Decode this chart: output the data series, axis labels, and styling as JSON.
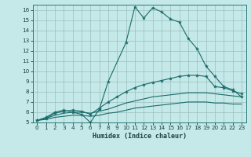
{
  "title": "",
  "xlabel": "Humidex (Indice chaleur)",
  "xlim": [
    -0.5,
    23.5
  ],
  "ylim": [
    5,
    16.5
  ],
  "yticks": [
    5,
    6,
    7,
    8,
    9,
    10,
    11,
    12,
    13,
    14,
    15,
    16
  ],
  "xticks": [
    0,
    1,
    2,
    3,
    4,
    5,
    6,
    7,
    8,
    9,
    10,
    11,
    12,
    13,
    14,
    15,
    16,
    17,
    18,
    19,
    20,
    21,
    22,
    23
  ],
  "bg_color": "#c5e8e8",
  "line_color": "#1a6b6b",
  "grid_color": "#9bbfbf",
  "lines": [
    {
      "x": [
        0,
        1,
        2,
        3,
        4,
        5,
        6,
        7,
        8,
        10,
        11,
        12,
        13,
        14,
        15,
        16,
        17,
        18,
        19,
        20,
        21,
        22,
        23
      ],
      "y": [
        5.2,
        5.5,
        6.0,
        6.2,
        6.0,
        5.8,
        5.0,
        6.3,
        9.0,
        12.8,
        16.3,
        15.2,
        16.2,
        15.8,
        15.1,
        14.8,
        13.2,
        12.2,
        10.5,
        9.5,
        8.5,
        8.2,
        7.5
      ],
      "marker": true
    },
    {
      "x": [
        0,
        1,
        2,
        3,
        4,
        5,
        6,
        7,
        8,
        9,
        10,
        11,
        12,
        13,
        14,
        15,
        16,
        17,
        18,
        19,
        20,
        21,
        22,
        23
      ],
      "y": [
        5.2,
        5.4,
        5.9,
        6.1,
        6.2,
        6.1,
        5.8,
        6.4,
        7.0,
        7.5,
        8.0,
        8.4,
        8.7,
        8.9,
        9.1,
        9.3,
        9.5,
        9.6,
        9.6,
        9.5,
        8.5,
        8.4,
        8.1,
        7.8
      ],
      "marker": true
    },
    {
      "x": [
        0,
        1,
        2,
        3,
        4,
        5,
        6,
        7,
        8,
        9,
        10,
        11,
        12,
        13,
        14,
        15,
        16,
        17,
        18,
        19,
        20,
        21,
        22,
        23
      ],
      "y": [
        5.2,
        5.4,
        5.7,
        5.9,
        6.0,
        6.0,
        5.9,
        6.1,
        6.3,
        6.6,
        6.9,
        7.1,
        7.3,
        7.5,
        7.6,
        7.7,
        7.8,
        7.9,
        7.9,
        7.9,
        7.8,
        7.7,
        7.6,
        7.5
      ],
      "marker": false
    },
    {
      "x": [
        0,
        1,
        2,
        3,
        4,
        5,
        6,
        7,
        8,
        9,
        10,
        11,
        12,
        13,
        14,
        15,
        16,
        17,
        18,
        19,
        20,
        21,
        22,
        23
      ],
      "y": [
        5.2,
        5.3,
        5.5,
        5.6,
        5.7,
        5.7,
        5.6,
        5.7,
        5.9,
        6.0,
        6.2,
        6.4,
        6.5,
        6.6,
        6.7,
        6.8,
        6.9,
        7.0,
        7.0,
        7.0,
        6.9,
        6.9,
        6.8,
        6.8
      ],
      "marker": false
    }
  ]
}
